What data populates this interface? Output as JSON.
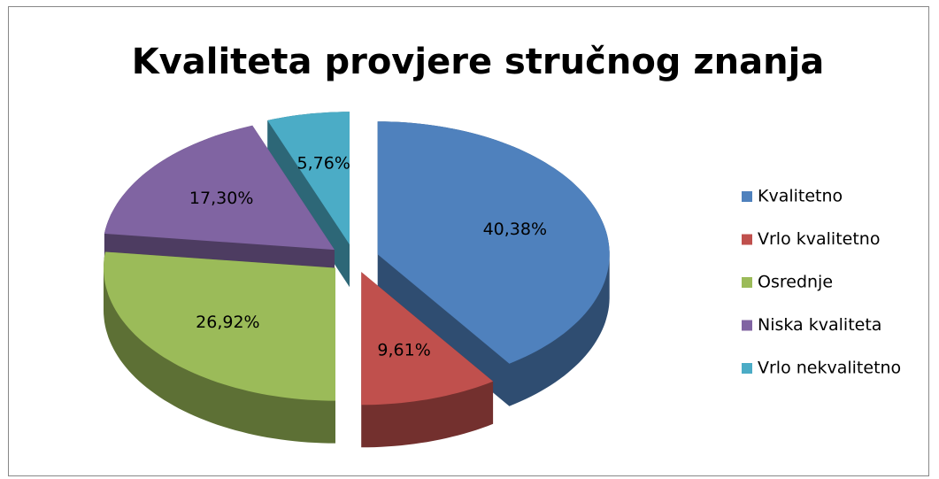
{
  "chart_data": {
    "type": "pie3d",
    "title": "Kvaliteta provjere stručnog znanja",
    "categories": [
      "Kvalitetno",
      "Vrlo kvalitetno",
      "Osrednje",
      "Niska kvaliteta",
      "Vrlo nekvalitetno"
    ],
    "values": [
      40.38,
      9.61,
      26.92,
      17.3,
      5.76
    ],
    "value_labels": [
      "40,38%",
      "9,61%",
      "26,92%",
      "17,30%",
      "5,76%"
    ],
    "colors": [
      "#4f81bd",
      "#c0504d",
      "#9bbb59",
      "#8064a2",
      "#4bacc6"
    ],
    "legend": "right"
  }
}
